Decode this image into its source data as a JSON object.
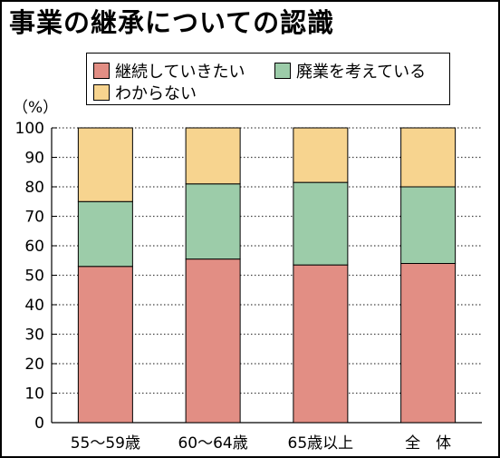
{
  "title": "事業の継承についての認識",
  "unit_label": "（%）",
  "colors": {
    "継続していきたい": "#e28e84",
    "廃業を考えている": "#9ccca9",
    "わからない": "#f7d48f"
  },
  "chart_data": {
    "type": "bar",
    "stacked": true,
    "categories": [
      "55～59歳",
      "60～64歳",
      "65歳以上",
      "全　体"
    ],
    "series": [
      {
        "name": "継続していきたい",
        "values": [
          53,
          55.5,
          53.5,
          54
        ]
      },
      {
        "name": "廃業を考えている",
        "values": [
          22,
          25.5,
          28,
          26
        ]
      },
      {
        "name": "わからない",
        "values": [
          25,
          19,
          18.5,
          20
        ]
      }
    ],
    "ylim": [
      0,
      100
    ],
    "yticks": [
      0,
      10,
      20,
      30,
      40,
      50,
      60,
      70,
      80,
      90,
      100
    ],
    "grid": "horizontal-dotted",
    "legend": "top"
  }
}
